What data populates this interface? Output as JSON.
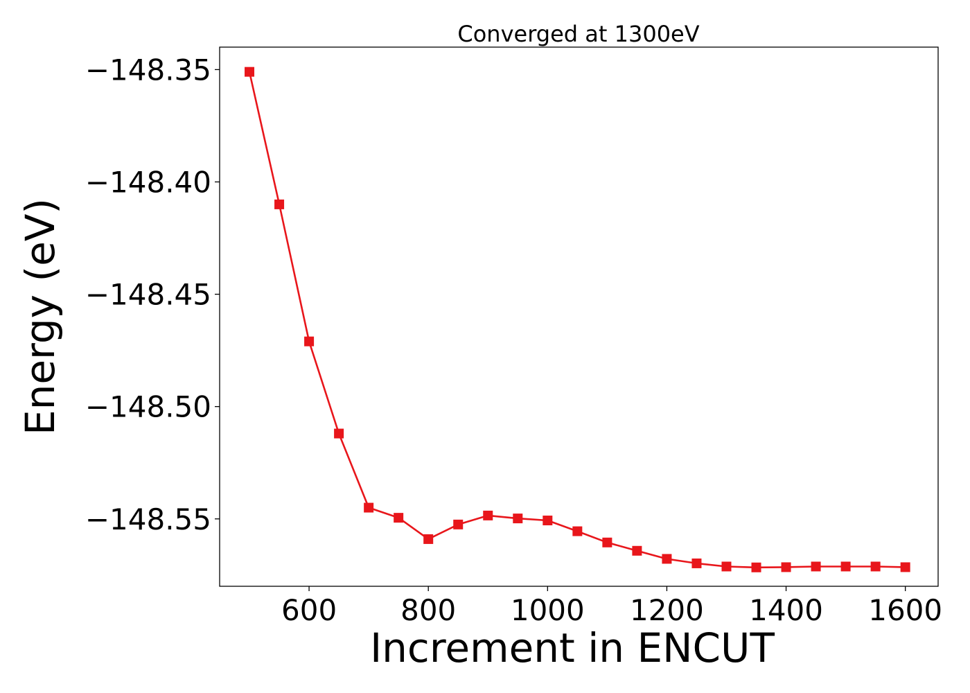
{
  "chart_data": {
    "type": "line",
    "title": "Converged at 1300eV",
    "xlabel": "Increment in ENCUT",
    "ylabel": "Energy (eV)",
    "xlim": [
      450,
      1655
    ],
    "ylim": [
      -148.58,
      -148.34
    ],
    "xticks": [
      600,
      800,
      1000,
      1200,
      1400,
      1600
    ],
    "xtick_labels": [
      "600",
      "800",
      "1000",
      "1200",
      "1400",
      "1600"
    ],
    "yticks": [
      -148.35,
      -148.4,
      -148.45,
      -148.5,
      -148.55
    ],
    "ytick_labels": [
      "−148.35",
      "−148.40",
      "−148.45",
      "−148.50",
      "−148.55"
    ],
    "grid": false,
    "marker": "square",
    "color": "#e8161b",
    "series": [
      {
        "x": [
          500,
          550,
          600,
          650,
          700,
          750,
          800,
          850,
          900,
          950,
          1000,
          1050,
          1100,
          1150,
          1200,
          1250,
          1300,
          1350,
          1400,
          1450,
          1500,
          1550,
          1600
        ],
        "y": [
          -148.351,
          -148.41,
          -148.471,
          -148.512,
          -148.545,
          -148.5495,
          -148.559,
          -148.5525,
          -148.5485,
          -148.5498,
          -148.5507,
          -148.5555,
          -148.5605,
          -148.5642,
          -148.5678,
          -148.5698,
          -148.5712,
          -148.5716,
          -148.5715,
          -148.5712,
          -148.5712,
          -148.5712,
          -148.5715
        ]
      }
    ]
  }
}
